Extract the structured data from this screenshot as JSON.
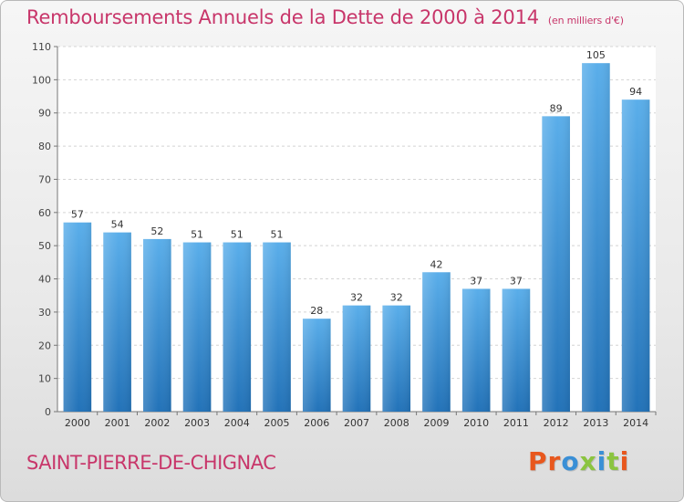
{
  "header": {
    "title": "Remboursements Annuels de la Dette de 2000 à 2014",
    "unit": "(en milliers d'€)"
  },
  "footer": {
    "commune": "SAINT-PIERRE-DE-CHIGNAC",
    "logo": {
      "text": "Proxiti",
      "letter_colors": [
        "#e8571d",
        "#e8571d",
        "#3a8fd6",
        "#8bc43f",
        "#3a8fd6",
        "#8bc43f",
        "#e8571d"
      ]
    }
  },
  "chart_data": {
    "type": "bar",
    "title": "Remboursements Annuels de la Dette de 2000 à 2014",
    "xlabel": "",
    "ylabel": "",
    "categories": [
      "2000",
      "2001",
      "2002",
      "2003",
      "2004",
      "2005",
      "2006",
      "2007",
      "2008",
      "2009",
      "2010",
      "2011",
      "2012",
      "2013",
      "2014"
    ],
    "values": [
      57,
      54,
      52,
      51,
      51,
      51,
      28,
      32,
      32,
      42,
      37,
      37,
      89,
      105,
      94
    ],
    "ylim": [
      0,
      110
    ],
    "yticks": [
      0,
      10,
      20,
      30,
      40,
      50,
      60,
      70,
      80,
      90,
      100,
      110
    ],
    "grid": true,
    "data_labels": true,
    "bar_color": "#3b8fd8",
    "bar_color_light": "#5aaeea",
    "bar_color_dark": "#2272b8"
  }
}
